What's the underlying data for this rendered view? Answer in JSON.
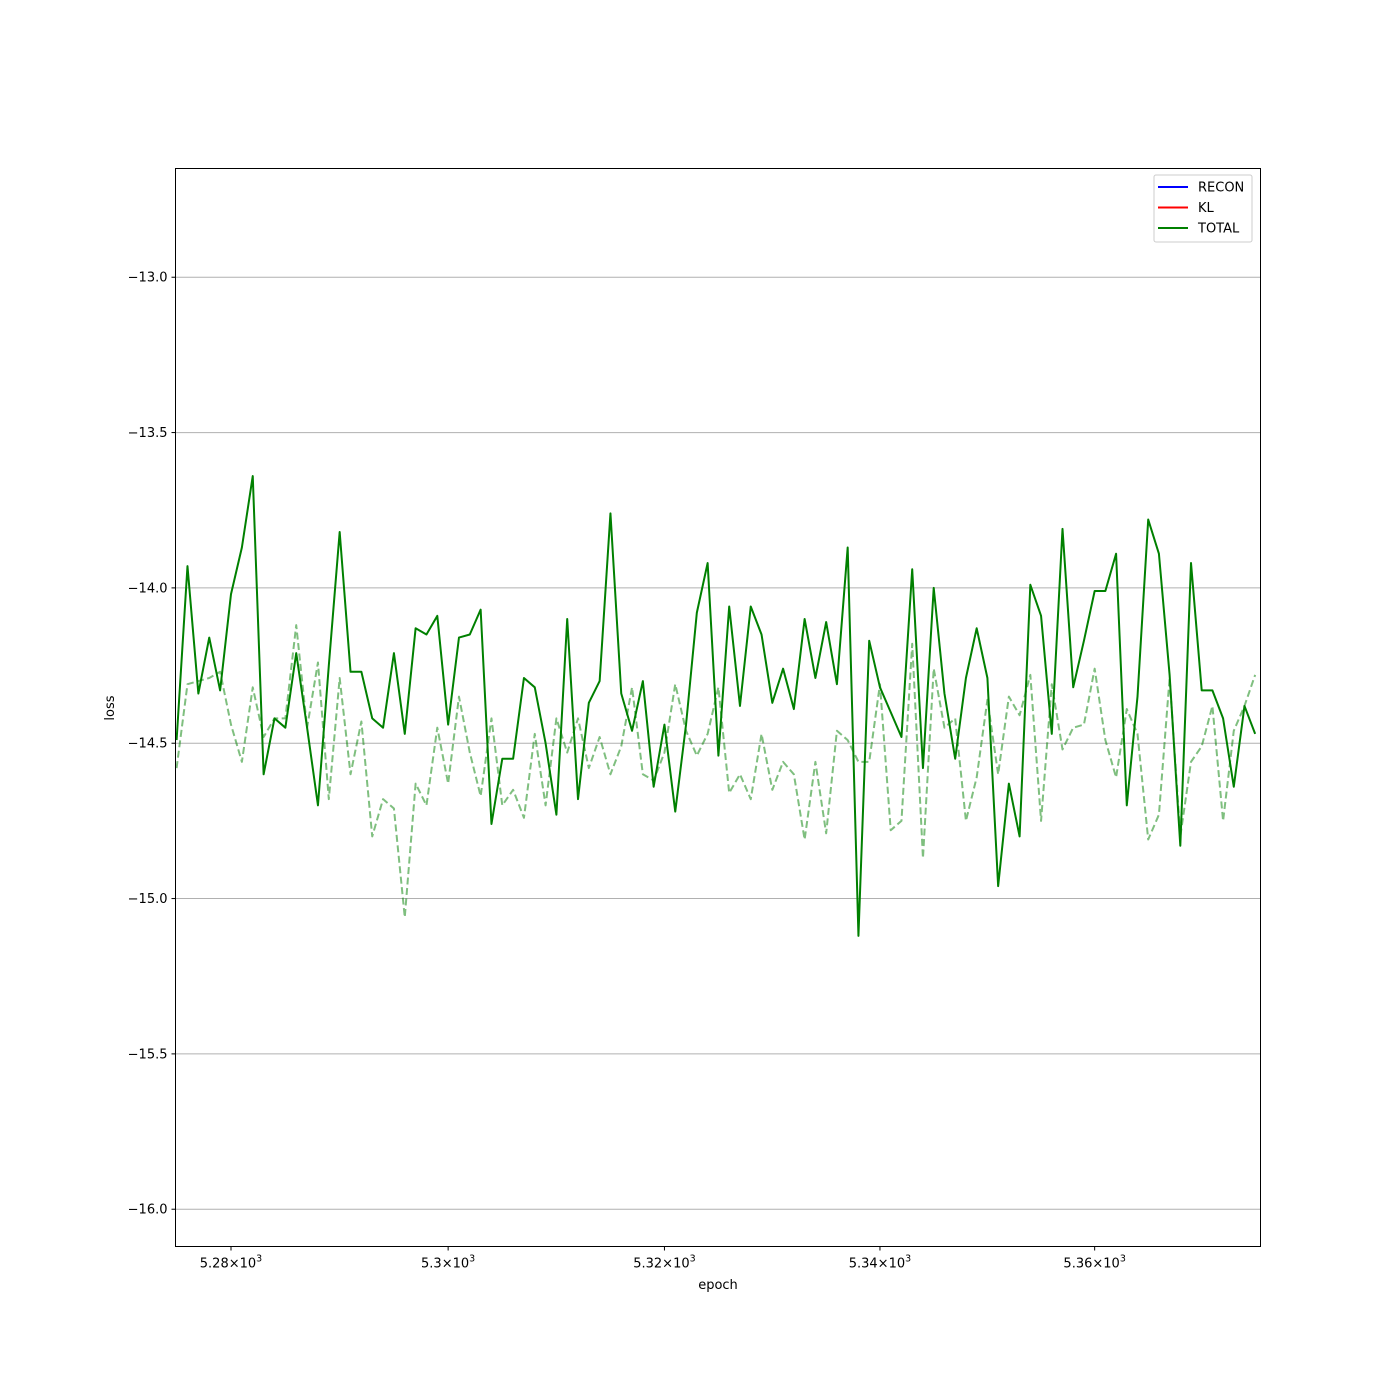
{
  "chart_data": {
    "type": "line",
    "xlabel": "epoch",
    "ylabel": "loss",
    "xscale": "log",
    "xlim": [
      5274.9,
      5375.5
    ],
    "ylim": [
      -16.12,
      -12.65
    ],
    "grid": "horizontal",
    "legend_placement": "top-right",
    "x_ticks": [
      {
        "value": 5280,
        "mantissa": "5.28",
        "base": "10",
        "exponent": "3"
      },
      {
        "value": 5300,
        "mantissa": "5.3",
        "base": "10",
        "exponent": "3"
      },
      {
        "value": 5320,
        "mantissa": "5.32",
        "base": "10",
        "exponent": "3"
      },
      {
        "value": 5340,
        "mantissa": "5.34",
        "base": "10",
        "exponent": "3"
      },
      {
        "value": 5360,
        "mantissa": "5.36",
        "base": "10",
        "exponent": "3"
      }
    ],
    "y_ticks": [
      {
        "value": -13.0,
        "label": "−13.0"
      },
      {
        "value": -13.5,
        "label": "−13.5"
      },
      {
        "value": -14.0,
        "label": "−14.0"
      },
      {
        "value": -14.5,
        "label": "−14.5"
      },
      {
        "value": -15.0,
        "label": "−15.0"
      },
      {
        "value": -15.5,
        "label": "−15.5"
      },
      {
        "value": -16.0,
        "label": "−16.0"
      }
    ],
    "legend": [
      {
        "name": "RECON",
        "color": "#0000ff"
      },
      {
        "name": "KL",
        "color": "#ff0000"
      },
      {
        "name": "TOTAL",
        "color": "#008000"
      }
    ],
    "series": [
      {
        "name": "TOTAL",
        "color": "#008000",
        "style": "solid",
        "x_start": 5275,
        "x_step": 1,
        "values": [
          -14.49,
          -13.93,
          -14.34,
          -14.16,
          -14.33,
          -14.02,
          -13.87,
          -13.64,
          -14.6,
          -14.42,
          -14.45,
          -14.21,
          -14.45,
          -14.7,
          -14.25,
          -13.82,
          -14.27,
          -14.27,
          -14.42,
          -14.45,
          -14.21,
          -14.47,
          -14.13,
          -14.15,
          -14.09,
          -14.44,
          -14.16,
          -14.15,
          -14.07,
          -14.76,
          -14.55,
          -14.55,
          -14.29,
          -14.32,
          -14.5,
          -14.73,
          -14.1,
          -14.68,
          -14.37,
          -14.3,
          -13.76,
          -14.34,
          -14.46,
          -14.3,
          -14.64,
          -14.44,
          -14.72,
          -14.44,
          -14.08,
          -13.92,
          -14.54,
          -14.06,
          -14.38,
          -14.06,
          -14.15,
          -14.37,
          -14.26,
          -14.39,
          -14.1,
          -14.29,
          -14.11,
          -14.31,
          -13.87,
          -15.12,
          -14.17,
          -14.32,
          -14.4,
          -14.48,
          -13.94,
          -14.58,
          -14.0,
          -14.34,
          -14.55,
          -14.29,
          -14.13,
          -14.29,
          -14.96,
          -14.63,
          -14.8,
          -13.99,
          -14.09,
          -14.47,
          -13.81,
          -14.32,
          -14.17,
          -14.01,
          -14.01,
          -13.89,
          -14.7,
          -14.35,
          -13.78,
          -13.89,
          -14.28,
          -14.83,
          -13.92,
          -14.33,
          -14.33,
          -14.42,
          -14.64,
          -14.38,
          -14.47
        ]
      },
      {
        "name": "",
        "color": "#008000",
        "style": "dashed",
        "opacity": 0.5,
        "x_start": 5275,
        "x_step": 1,
        "values": [
          -14.58,
          -14.31,
          -14.3,
          -14.29,
          -14.27,
          -14.44,
          -14.56,
          -14.32,
          -14.48,
          -14.42,
          -14.42,
          -14.12,
          -14.45,
          -14.24,
          -14.68,
          -14.29,
          -14.6,
          -14.43,
          -14.8,
          -14.68,
          -14.71,
          -15.06,
          -14.63,
          -14.7,
          -14.45,
          -14.63,
          -14.35,
          -14.53,
          -14.67,
          -14.42,
          -14.7,
          -14.65,
          -14.74,
          -14.47,
          -14.7,
          -14.42,
          -14.53,
          -14.42,
          -14.58,
          -14.48,
          -14.6,
          -14.51,
          -14.32,
          -14.6,
          -14.62,
          -14.53,
          -14.31,
          -14.46,
          -14.54,
          -14.47,
          -14.32,
          -14.66,
          -14.6,
          -14.68,
          -14.47,
          -14.65,
          -14.56,
          -14.6,
          -14.81,
          -14.56,
          -14.79,
          -14.46,
          -14.49,
          -14.56,
          -14.56,
          -14.31,
          -14.78,
          -14.75,
          -14.18,
          -14.87,
          -14.26,
          -14.45,
          -14.42,
          -14.75,
          -14.61,
          -14.36,
          -14.6,
          -14.35,
          -14.41,
          -14.28,
          -14.75,
          -14.31,
          -14.52,
          -14.45,
          -14.44,
          -14.26,
          -14.49,
          -14.61,
          -14.39,
          -14.47,
          -14.81,
          -14.73,
          -14.29,
          -14.8,
          -14.56,
          -14.51,
          -14.38,
          -14.75,
          -14.46,
          -14.38,
          -14.28
        ]
      }
    ]
  }
}
